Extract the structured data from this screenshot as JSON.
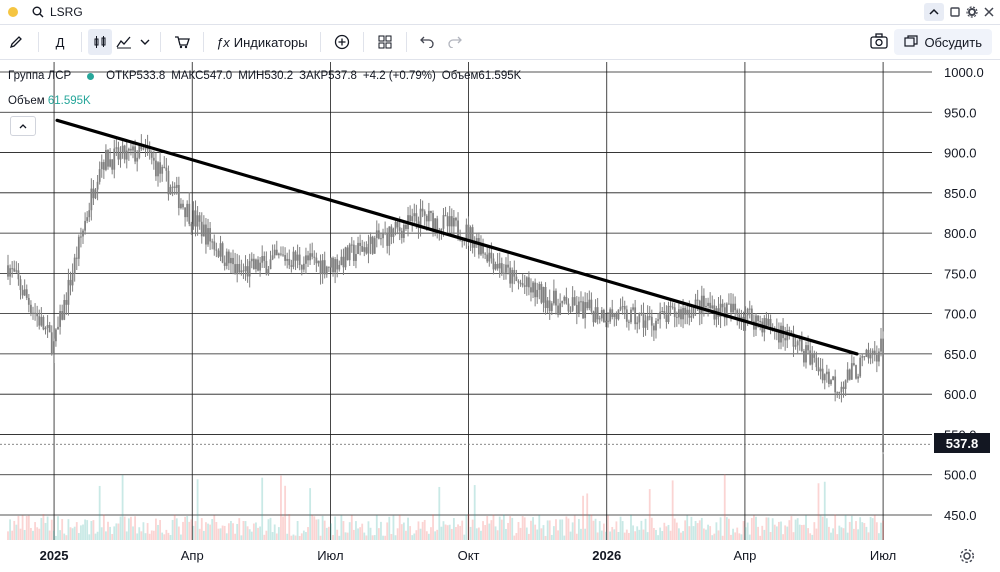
{
  "window": {
    "symbol": "LSRG",
    "search_icon": "search-icon"
  },
  "toolbar": {
    "period": "Д",
    "indicators_label": "Индикаторы",
    "discuss_label": "Обсудить"
  },
  "legend": {
    "name": "Группа ЛСР",
    "open": "ОТКР533.8",
    "high": "МАКС547.0",
    "low": "МИН530.2",
    "close": "ЗАКР537.8",
    "change": "+4.2 (+0.79%)",
    "volume": "Объем61.595K",
    "volume_label": "Объем",
    "volume_value": "61.595K"
  },
  "price_tag": "537.8",
  "colors": {
    "up": "#26a69a",
    "down": "#ef5350",
    "candle": "#808080",
    "trendline": "#000000"
  },
  "chart_data": {
    "type": "line",
    "y_ticks": [
      "1000.0",
      "950.0",
      "900.0",
      "850.0",
      "800.0",
      "750.0",
      "700.0",
      "650.0",
      "600.0",
      "550.0",
      "500.0",
      "450.0"
    ],
    "ylim": [
      430,
      1000
    ],
    "x_ticks": [
      "2025",
      "Апр",
      "Июл",
      "Окт",
      "2026",
      "Апр",
      "Июл"
    ],
    "x_tick_bold": [
      true,
      false,
      false,
      false,
      true,
      false,
      false
    ],
    "x": [
      "2024-12",
      "2025-01",
      "2025-02",
      "2025-03",
      "2025-04",
      "2025-05",
      "2025-06",
      "2025-07",
      "2025-08",
      "2025-09",
      "2025-10",
      "2025-11",
      "2025-12",
      "2026-01",
      "2026-02",
      "2026-03",
      "2026-04",
      "2026-05",
      "2026-06",
      "2026-07"
    ],
    "series": [
      {
        "values": [
          760,
          660,
          890,
          900,
          820,
          750,
          770,
          760,
          790,
          820,
          800,
          740,
          710,
          700,
          690,
          710,
          700,
          670,
          610,
          660
        ]
      }
    ],
    "last_close": 537.8,
    "trendline": {
      "from": [
        "2025-01",
        940
      ],
      "to": [
        "2026-06",
        650
      ]
    }
  }
}
